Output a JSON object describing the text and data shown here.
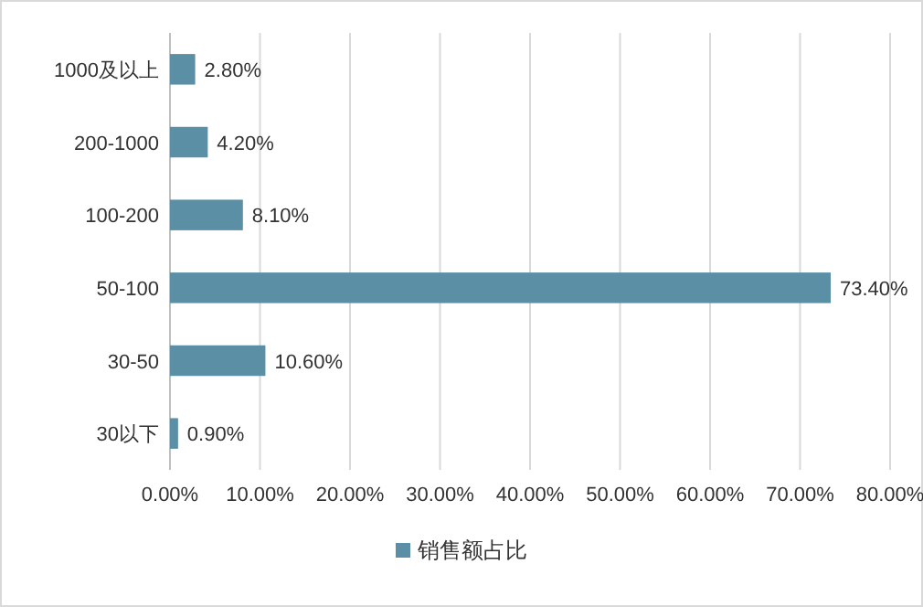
{
  "chart_data": {
    "type": "bar",
    "orientation": "horizontal",
    "categories": [
      "1000及以上",
      "200-1000",
      "100-200",
      "50-100",
      "30-50",
      "30以下"
    ],
    "series": [
      {
        "name": "销售额占比",
        "color": "#5b8fa6",
        "values": [
          2.8,
          4.2,
          8.1,
          73.4,
          10.6,
          0.9
        ],
        "value_labels": [
          "2.80%",
          "4.20%",
          "8.10%",
          "73.40%",
          "10.60%",
          "0.90%"
        ]
      }
    ],
    "xlim": [
      0,
      80
    ],
    "xticks": [
      {
        "value": 0,
        "label": "0.00%"
      },
      {
        "value": 10,
        "label": "10.00%"
      },
      {
        "value": 20,
        "label": "20.00%"
      },
      {
        "value": 30,
        "label": "30.00%"
      },
      {
        "value": 40,
        "label": "40.00%"
      },
      {
        "value": 50,
        "label": "50.00%"
      },
      {
        "value": 60,
        "label": "60.00%"
      },
      {
        "value": 70,
        "label": "70.00%"
      },
      {
        "value": 80,
        "label": "80.00%"
      }
    ],
    "grid": "x",
    "legend": "bottom"
  }
}
